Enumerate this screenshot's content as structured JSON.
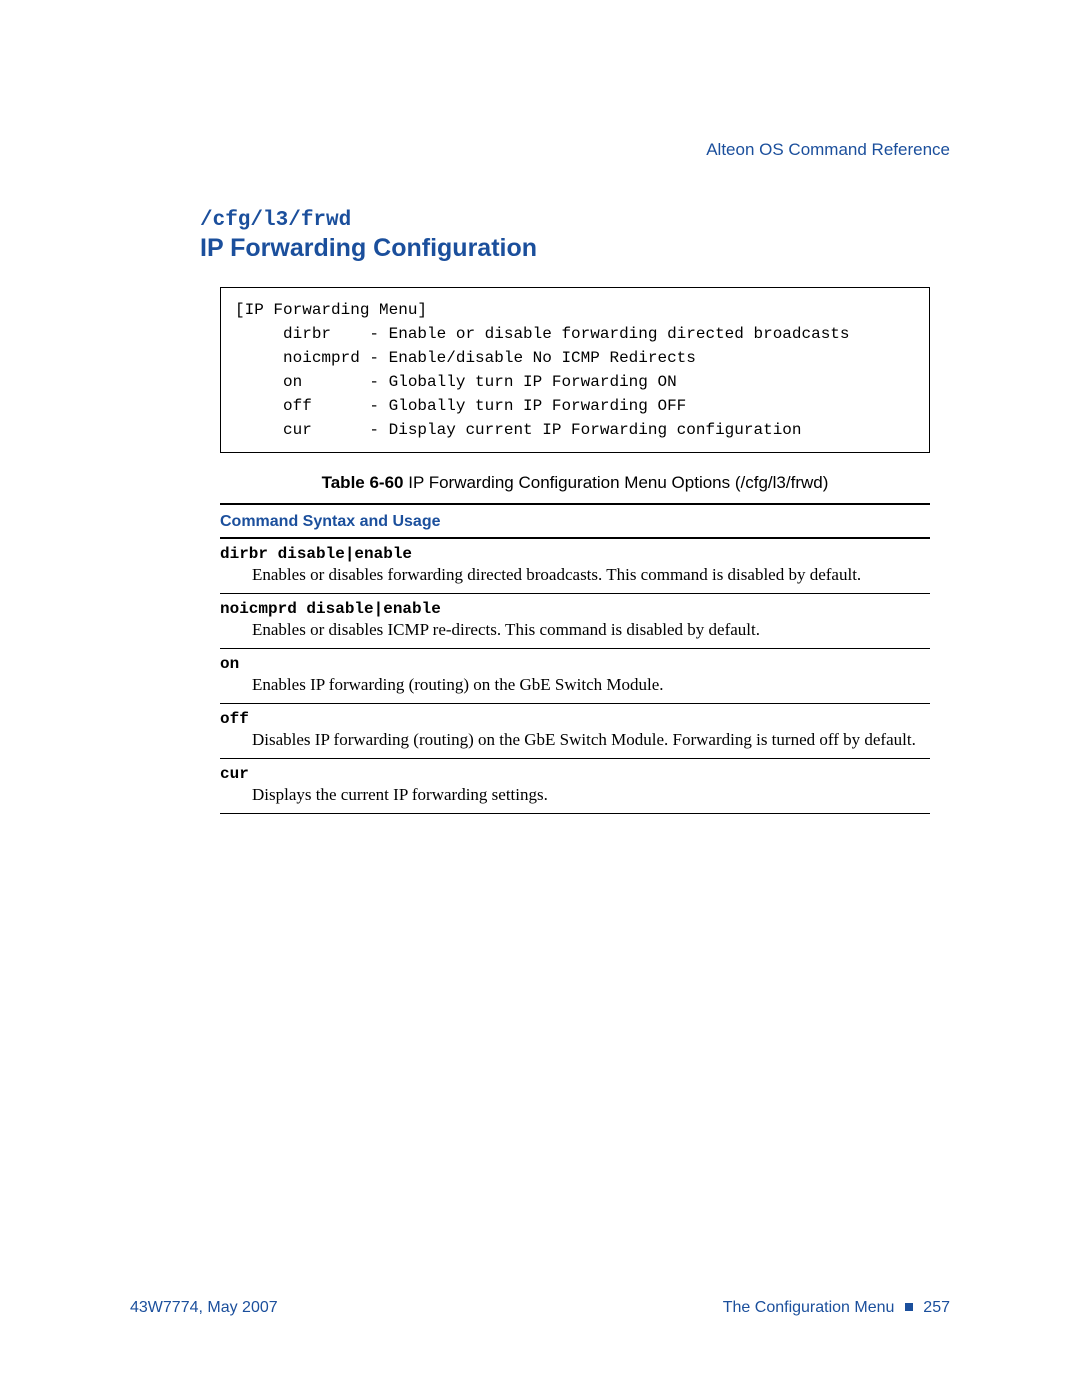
{
  "header": {
    "reference": "Alteon OS  Command Reference"
  },
  "section": {
    "path": "/cfg/l3/frwd",
    "title": "IP Forwarding Configuration"
  },
  "menu_box": "[IP Forwarding Menu]\n     dirbr    - Enable or disable forwarding directed broadcasts\n     noicmprd - Enable/disable No ICMP Redirects\n     on       - Globally turn IP Forwarding ON\n     off      - Globally turn IP Forwarding OFF\n     cur      - Display current IP Forwarding configuration",
  "table": {
    "caption_bold": "Table 6-60",
    "caption_rest": "  IP Forwarding Configuration Menu Options (/cfg/l3/frwd)",
    "header": "Command Syntax and Usage",
    "rows": [
      {
        "syntax": "dirbr disable|enable",
        "desc": "Enables or disables forwarding directed broadcasts. This command is disabled by default."
      },
      {
        "syntax": "noicmprd disable|enable",
        "desc": "Enables or disables ICMP re-directs. This command is disabled by default."
      },
      {
        "syntax": "on",
        "desc": "Enables IP forwarding (routing) on the GbE Switch Module."
      },
      {
        "syntax": "off",
        "desc": "Disables IP forwarding (routing) on the GbE Switch Module. Forwarding is turned off by default."
      },
      {
        "syntax": "cur",
        "desc": "Displays the current IP forwarding settings."
      }
    ]
  },
  "footer": {
    "left": "43W7774, May 2007",
    "right_text": "The Configuration Menu ",
    "page": "  257"
  },
  "colors": {
    "accent": "#1b4f9c",
    "text": "#000000",
    "background": "#ffffff"
  },
  "fonts": {
    "serif": "Georgia, Times New Roman, serif",
    "sans": "Segoe UI, Myriad Pro, Arial, sans-serif",
    "mono": "Courier New, monospace"
  }
}
